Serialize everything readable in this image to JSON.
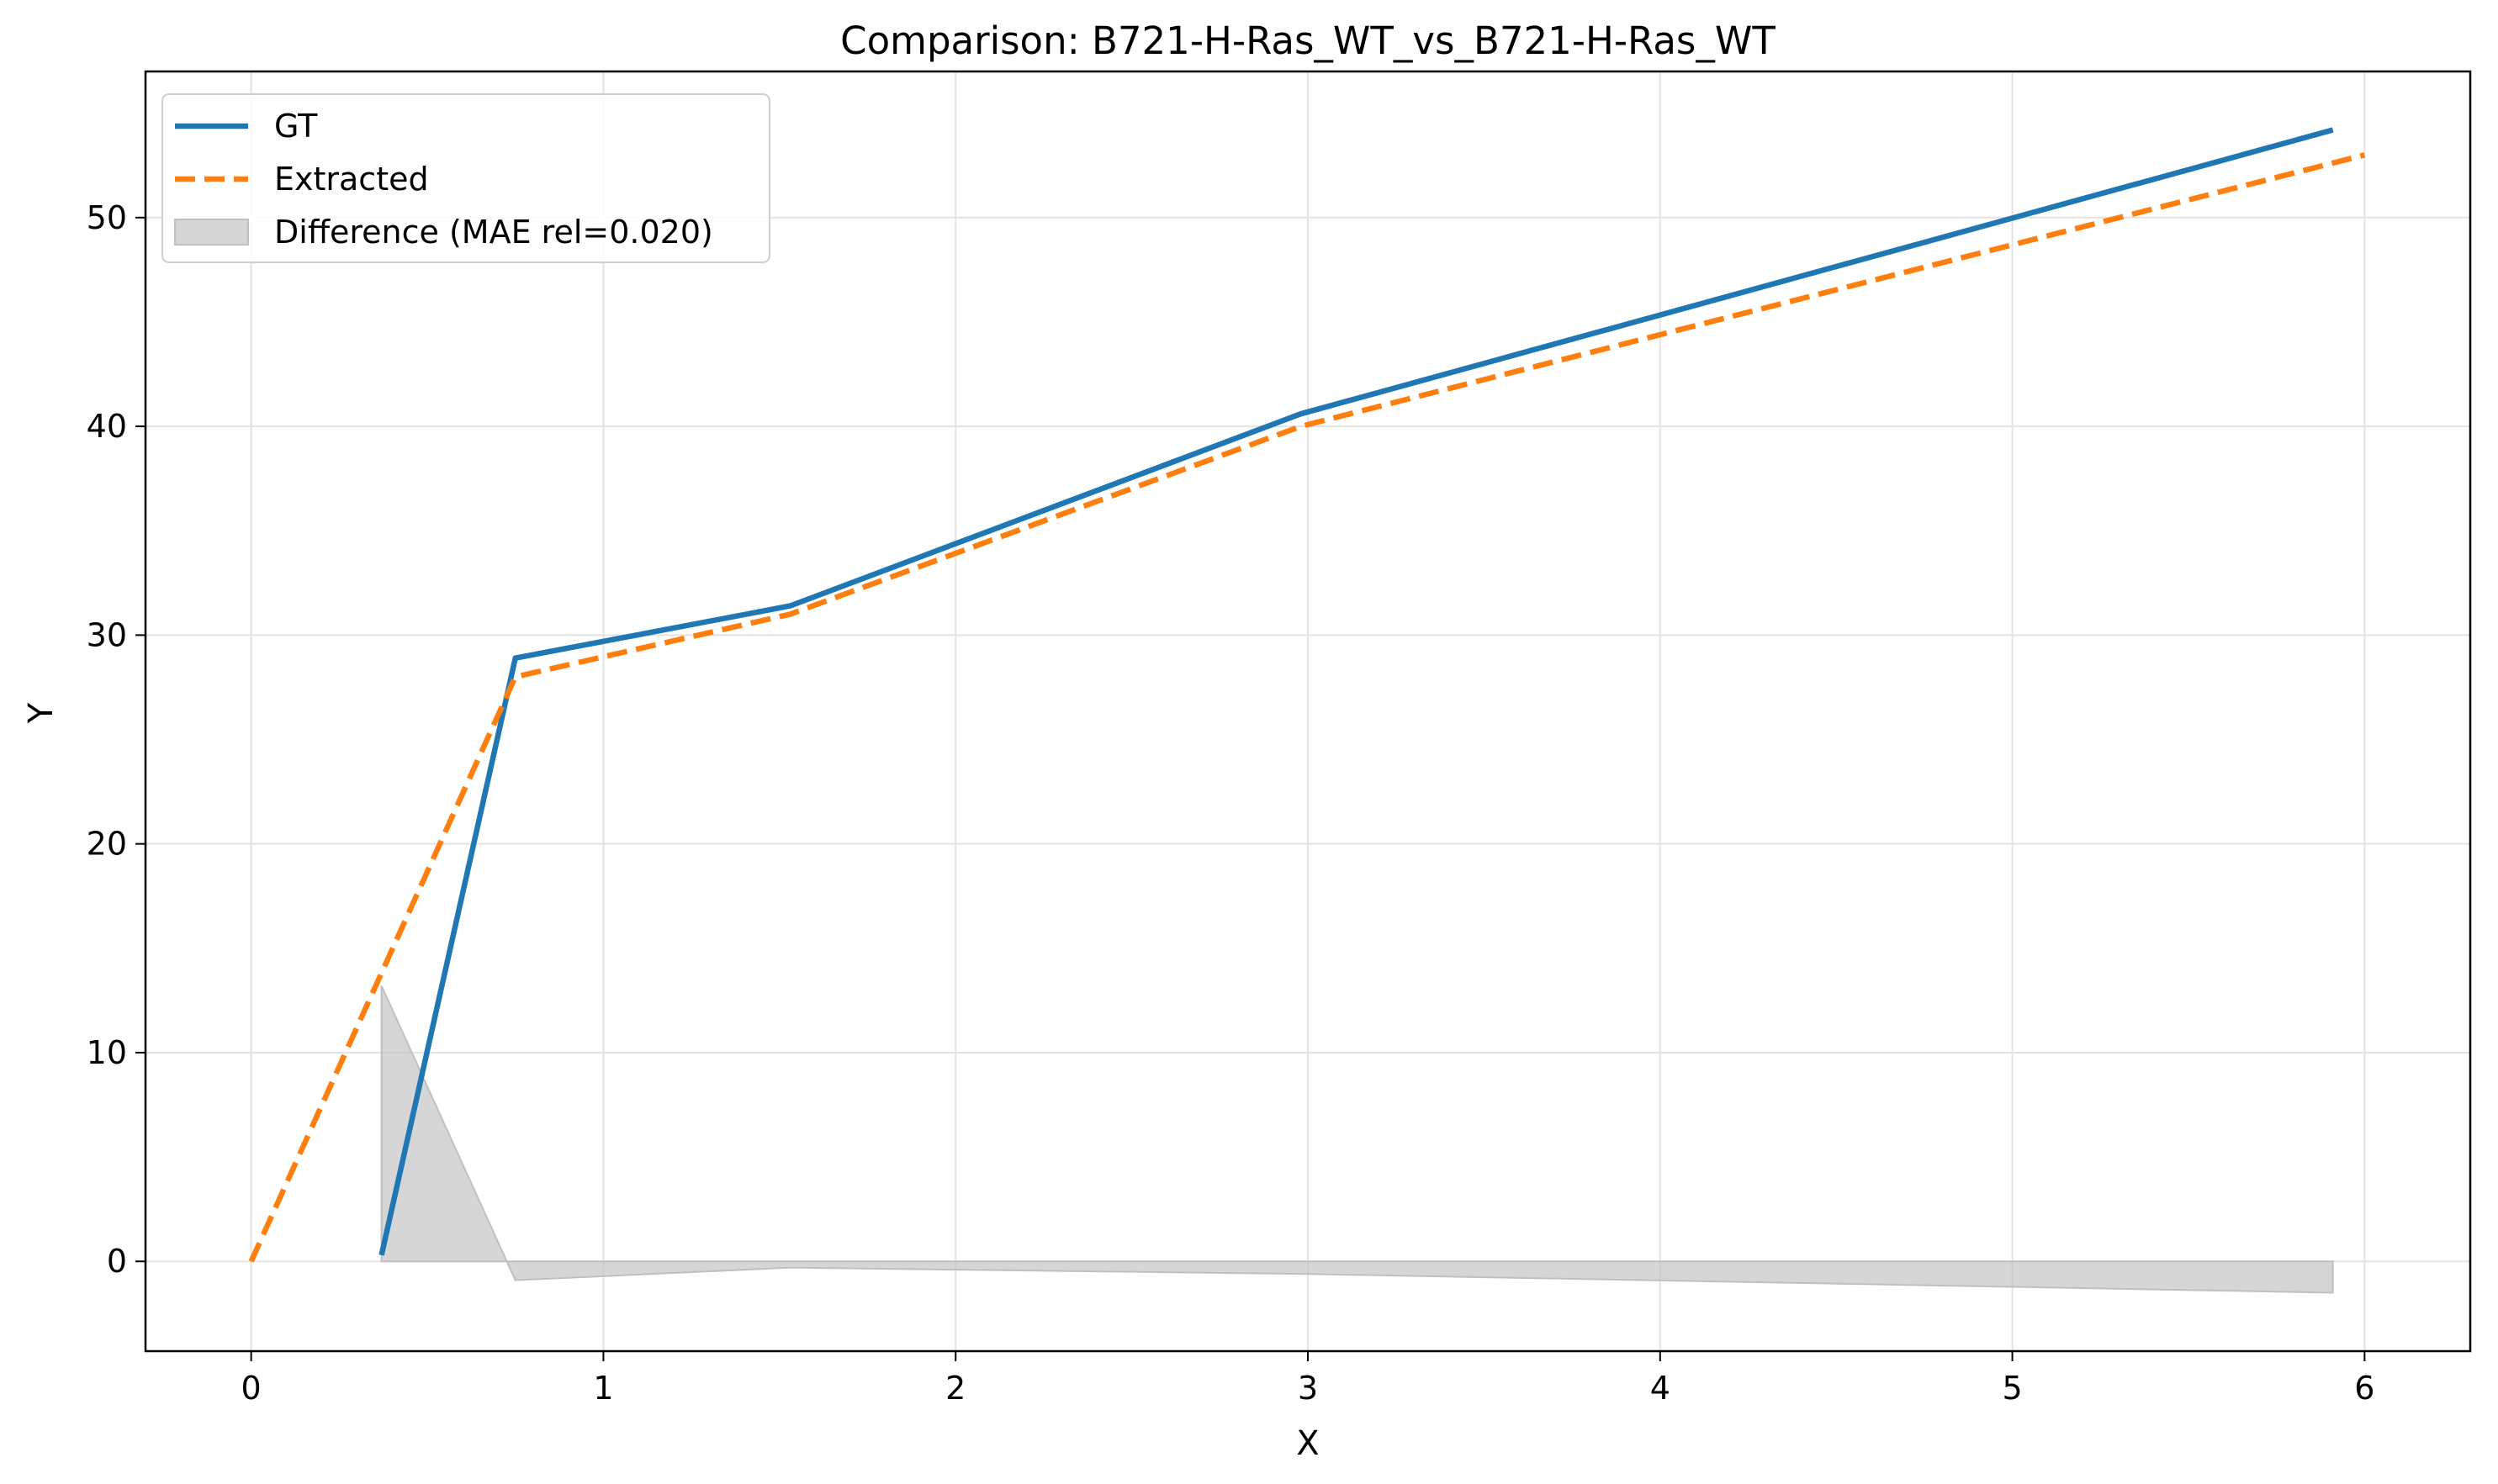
{
  "chart_data": {
    "type": "line",
    "title": "Comparison: B721-H-Ras_WT_vs_B721-H-Ras_WT",
    "xlabel": "X",
    "ylabel": "Y",
    "xlim": [
      -0.3,
      6.3
    ],
    "ylim": [
      -4.3,
      57.0
    ],
    "xticks": [
      0,
      1,
      2,
      3,
      4,
      5,
      6
    ],
    "yticks": [
      0,
      10,
      20,
      30,
      40,
      50
    ],
    "grid": true,
    "legend_position": "top-left",
    "series": [
      {
        "name": "GT",
        "style": "solid",
        "color": "#1f77b4",
        "x": [
          0.37,
          0.75,
          1.53,
          2.98,
          5.91
        ],
        "y": [
          0.3,
          28.9,
          31.4,
          40.6,
          54.2
        ]
      },
      {
        "name": "Extracted",
        "style": "dashed",
        "color": "#ff7f0e",
        "x": [
          0.0,
          0.75,
          1.53,
          2.98,
          6.0
        ],
        "y": [
          0.0,
          28.0,
          31.0,
          40.0,
          53.0
        ]
      }
    ],
    "difference": {
      "name": "Difference (MAE rel=0.020)",
      "color": "#c0c0c0",
      "x": [
        0.37,
        0.75,
        1.53,
        2.98,
        5.91
      ],
      "y": [
        13.2,
        -0.9,
        -0.3,
        -0.6,
        -1.5
      ]
    }
  }
}
